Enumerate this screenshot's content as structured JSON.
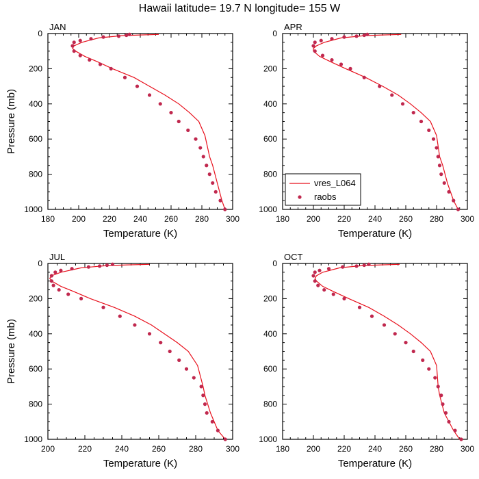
{
  "page": {
    "title": "Hawaii  latitude= 19.7 N longitude= 155 W"
  },
  "colors": {
    "model_line": "#e8101c",
    "obs_marker": "#c0284e"
  },
  "legend": {
    "panel": 1,
    "entries": [
      "vres_L064",
      "raobs"
    ]
  },
  "chart_data": [
    {
      "type": "line",
      "panel_label": "JAN",
      "xlabel": "Temperature (K)",
      "ylabel": "Pressure (mb)",
      "xlim": [
        180,
        300
      ],
      "ylim": [
        1000,
        0
      ],
      "xticks": [
        180,
        200,
        220,
        240,
        260,
        280,
        300
      ],
      "yticks": [
        0,
        200,
        400,
        600,
        800,
        1000
      ],
      "series": [
        {
          "name": "vres_L064",
          "kind": "line",
          "x": [
            252,
            240,
            228,
            213,
            202,
            197,
            196,
            198,
            204,
            212,
            222,
            236,
            246,
            256,
            265,
            272,
            278,
            282,
            285,
            287,
            290,
            293,
            295
          ],
          "y": [
            5,
            8,
            12,
            25,
            50,
            70,
            85,
            100,
            130,
            160,
            200,
            250,
            300,
            350,
            400,
            450,
            500,
            580,
            700,
            750,
            850,
            950,
            1000
          ]
        },
        {
          "name": "raobs",
          "kind": "scatter",
          "x": [
            233,
            231,
            226,
            216,
            208,
            201,
            197,
            196,
            197,
            201,
            207,
            214,
            221,
            230,
            238,
            246,
            253,
            260,
            265,
            271,
            276,
            279,
            281,
            283,
            285,
            287,
            289,
            292,
            295
          ],
          "y": [
            5,
            10,
            15,
            20,
            30,
            40,
            50,
            70,
            100,
            125,
            150,
            175,
            200,
            250,
            300,
            350,
            400,
            450,
            500,
            550,
            600,
            650,
            700,
            750,
            800,
            850,
            900,
            950,
            1000
          ]
        }
      ]
    },
    {
      "type": "line",
      "panel_label": "APR",
      "xlabel": "Temperature (K)",
      "ylabel": "",
      "xlim": [
        180,
        300
      ],
      "ylim": [
        1000,
        0
      ],
      "xticks": [
        180,
        200,
        220,
        240,
        260,
        280,
        300
      ],
      "yticks": [
        0,
        200,
        400,
        600,
        800,
        1000
      ],
      "series": [
        {
          "name": "vres_L064",
          "kind": "line",
          "x": [
            257,
            245,
            233,
            218,
            207,
            202,
            200,
            200,
            204,
            211,
            221,
            234,
            245,
            255,
            263,
            270,
            276,
            280,
            282,
            284,
            287,
            291,
            294
          ],
          "y": [
            5,
            8,
            12,
            25,
            50,
            70,
            85,
            100,
            130,
            160,
            200,
            250,
            300,
            350,
            400,
            450,
            500,
            580,
            700,
            750,
            850,
            950,
            1000
          ]
        },
        {
          "name": "raobs",
          "kind": "scatter",
          "x": [
            235,
            233,
            228,
            220,
            212,
            205,
            201,
            200,
            201,
            206,
            212,
            218,
            224,
            233,
            243,
            251,
            258,
            265,
            270,
            275,
            278,
            280,
            281,
            282,
            283,
            285,
            288,
            291,
            294
          ],
          "y": [
            5,
            10,
            15,
            20,
            30,
            40,
            50,
            70,
            100,
            125,
            150,
            175,
            200,
            250,
            300,
            350,
            400,
            450,
            500,
            550,
            600,
            650,
            700,
            750,
            800,
            850,
            900,
            950,
            1000
          ]
        }
      ]
    },
    {
      "type": "line",
      "panel_label": "JUL",
      "xlabel": "Temperature (K)",
      "ylabel": "Pressure (mb)",
      "xlim": [
        200,
        300
      ],
      "ylim": [
        1000,
        0
      ],
      "xticks": [
        200,
        220,
        240,
        260,
        280,
        300
      ],
      "yticks": [
        0,
        200,
        400,
        600,
        800,
        1000
      ],
      "series": [
        {
          "name": "vres_L064",
          "kind": "line",
          "x": [
            255,
            243,
            232,
            218,
            207,
            202,
            201,
            202,
            207,
            214,
            223,
            236,
            247,
            256,
            263,
            270,
            276,
            281,
            284,
            285,
            288,
            292,
            296
          ],
          "y": [
            5,
            8,
            12,
            25,
            50,
            70,
            85,
            100,
            130,
            160,
            200,
            250,
            300,
            350,
            400,
            450,
            500,
            580,
            700,
            750,
            850,
            950,
            1000
          ]
        },
        {
          "name": "raobs",
          "kind": "scatter",
          "x": [
            235,
            232,
            228,
            222,
            213,
            207,
            204,
            202,
            202,
            203,
            206,
            211,
            218,
            230,
            239,
            247,
            255,
            261,
            266,
            271,
            275,
            279,
            283,
            284,
            285,
            286,
            289,
            292,
            296
          ],
          "y": [
            5,
            10,
            15,
            20,
            30,
            40,
            50,
            70,
            100,
            125,
            150,
            175,
            200,
            250,
            300,
            350,
            400,
            450,
            500,
            550,
            600,
            650,
            700,
            750,
            800,
            850,
            900,
            950,
            1000
          ]
        }
      ]
    },
    {
      "type": "line",
      "panel_label": "OCT",
      "xlabel": "Temperature (K)",
      "ylabel": "",
      "xlim": [
        180,
        300
      ],
      "ylim": [
        1000,
        0
      ],
      "xticks": [
        180,
        200,
        220,
        240,
        260,
        280,
        300
      ],
      "yticks": [
        0,
        200,
        400,
        600,
        800,
        1000
      ],
      "series": [
        {
          "name": "vres_L064",
          "kind": "line",
          "x": [
            256,
            244,
            232,
            217,
            206,
            202,
            201,
            202,
            206,
            213,
            223,
            236,
            246,
            255,
            263,
            270,
            276,
            280,
            281,
            282,
            285,
            291,
            295
          ],
          "y": [
            5,
            8,
            12,
            25,
            50,
            70,
            85,
            100,
            130,
            160,
            200,
            250,
            300,
            350,
            400,
            450,
            500,
            580,
            700,
            750,
            850,
            950,
            1000
          ]
        },
        {
          "name": "raobs",
          "kind": "scatter",
          "x": [
            236,
            233,
            228,
            219,
            210,
            204,
            201,
            200,
            201,
            203,
            207,
            213,
            220,
            230,
            238,
            246,
            253,
            260,
            265,
            271,
            275,
            279,
            281,
            283,
            284,
            286,
            288,
            292,
            296
          ],
          "y": [
            5,
            10,
            15,
            20,
            30,
            40,
            50,
            70,
            100,
            125,
            150,
            175,
            200,
            250,
            300,
            350,
            400,
            450,
            500,
            550,
            600,
            650,
            700,
            750,
            800,
            850,
            900,
            950,
            1000
          ]
        }
      ]
    }
  ]
}
